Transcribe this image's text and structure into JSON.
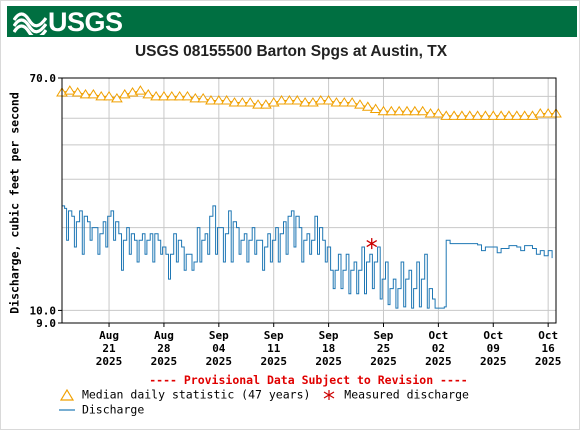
{
  "header": {
    "logo_text": "USGS",
    "banner_color": "#006f41"
  },
  "chart_data": {
    "type": "line",
    "title": "USGS 08155500 Barton Spgs at Austin, TX",
    "ylabel": "Discharge, cubic feet per second",
    "xlabel": "",
    "y_scale": "log",
    "ylim": [
      9.0,
      70.0
    ],
    "y_ticks": [
      {
        "value": 70.0,
        "label": "70.0"
      },
      {
        "value": 10.0,
        "label": "10.0"
      },
      {
        "value": 9.0,
        "label": "9.0"
      }
    ],
    "y_gridlines": [
      9,
      10,
      20,
      30,
      40,
      50,
      60,
      70
    ],
    "xlim": [
      "2025-08-15",
      "2025-10-17"
    ],
    "x_ticks": [
      {
        "date": "2025-08-21",
        "label": [
          "Aug",
          "21",
          "2025"
        ]
      },
      {
        "date": "2025-08-28",
        "label": [
          "Aug",
          "28",
          "2025"
        ]
      },
      {
        "date": "2025-09-04",
        "label": [
          "Sep",
          "04",
          "2025"
        ]
      },
      {
        "date": "2025-09-11",
        "label": [
          "Sep",
          "11",
          "2025"
        ]
      },
      {
        "date": "2025-09-18",
        "label": [
          "Sep",
          "18",
          "2025"
        ]
      },
      {
        "date": "2025-09-25",
        "label": [
          "Sep",
          "25",
          "2025"
        ]
      },
      {
        "date": "2025-10-02",
        "label": [
          "Oct",
          "02",
          "2025"
        ]
      },
      {
        "date": "2025-10-09",
        "label": [
          "Oct",
          "09",
          "2025"
        ]
      },
      {
        "date": "2025-10-16",
        "label": [
          "Oct",
          "16",
          "2025"
        ]
      }
    ],
    "grid": true,
    "series": [
      {
        "name": "Median daily statistic (47 years)",
        "color": "#f0a000",
        "marker": "triangle",
        "points": [
          [
            "2025-08-15",
            62
          ],
          [
            "2025-08-16",
            63
          ],
          [
            "2025-08-17",
            62
          ],
          [
            "2025-08-18",
            61
          ],
          [
            "2025-08-19",
            61
          ],
          [
            "2025-08-20",
            60
          ],
          [
            "2025-08-21",
            60
          ],
          [
            "2025-08-22",
            59
          ],
          [
            "2025-08-23",
            61
          ],
          [
            "2025-08-24",
            62
          ],
          [
            "2025-08-25",
            63
          ],
          [
            "2025-08-26",
            61
          ],
          [
            "2025-08-27",
            60
          ],
          [
            "2025-08-28",
            60
          ],
          [
            "2025-08-29",
            60
          ],
          [
            "2025-08-30",
            60
          ],
          [
            "2025-08-31",
            60
          ],
          [
            "2025-09-01",
            59
          ],
          [
            "2025-09-02",
            59
          ],
          [
            "2025-09-03",
            58
          ],
          [
            "2025-09-04",
            58
          ],
          [
            "2025-09-05",
            58
          ],
          [
            "2025-09-06",
            57
          ],
          [
            "2025-09-07",
            57
          ],
          [
            "2025-09-08",
            57
          ],
          [
            "2025-09-09",
            56
          ],
          [
            "2025-09-10",
            56
          ],
          [
            "2025-09-11",
            57
          ],
          [
            "2025-09-12",
            58
          ],
          [
            "2025-09-13",
            58
          ],
          [
            "2025-09-14",
            58
          ],
          [
            "2025-09-15",
            57
          ],
          [
            "2025-09-16",
            57
          ],
          [
            "2025-09-17",
            58
          ],
          [
            "2025-09-18",
            58
          ],
          [
            "2025-09-19",
            57
          ],
          [
            "2025-09-20",
            57
          ],
          [
            "2025-09-21",
            57
          ],
          [
            "2025-09-22",
            56
          ],
          [
            "2025-09-23",
            55
          ],
          [
            "2025-09-24",
            54
          ],
          [
            "2025-09-25",
            53
          ],
          [
            "2025-09-26",
            53
          ],
          [
            "2025-09-27",
            53
          ],
          [
            "2025-09-28",
            53
          ],
          [
            "2025-09-29",
            53
          ],
          [
            "2025-09-30",
            53
          ],
          [
            "2025-10-01",
            52
          ],
          [
            "2025-10-02",
            52
          ],
          [
            "2025-10-03",
            51
          ],
          [
            "2025-10-04",
            51
          ],
          [
            "2025-10-05",
            51
          ],
          [
            "2025-10-06",
            51
          ],
          [
            "2025-10-07",
            51
          ],
          [
            "2025-10-08",
            51
          ],
          [
            "2025-10-09",
            51
          ],
          [
            "2025-10-10",
            51
          ],
          [
            "2025-10-11",
            51
          ],
          [
            "2025-10-12",
            51
          ],
          [
            "2025-10-13",
            51
          ],
          [
            "2025-10-14",
            51
          ],
          [
            "2025-10-15",
            52
          ],
          [
            "2025-10-16",
            52
          ],
          [
            "2025-10-17",
            52
          ]
        ]
      },
      {
        "name": "Measured discharge",
        "color": "#cc0000",
        "marker": "asterisk",
        "points": [
          [
            "2025-09-23T12:00",
            17.5
          ]
        ]
      },
      {
        "name": "Discharge",
        "color": "#1f77b4",
        "marker": "line",
        "points": [
          [
            "2025-08-15T00:00",
            24
          ],
          [
            "2025-08-15T08:00",
            23.5
          ],
          [
            "2025-08-15T14:00",
            18
          ],
          [
            "2025-08-15T20:00",
            23
          ],
          [
            "2025-08-16T06:00",
            22
          ],
          [
            "2025-08-16T14:00",
            17
          ],
          [
            "2025-08-16T20:00",
            21
          ],
          [
            "2025-08-17T06:00",
            23
          ],
          [
            "2025-08-17T14:00",
            16
          ],
          [
            "2025-08-17T20:00",
            22
          ],
          [
            "2025-08-18T06:00",
            21
          ],
          [
            "2025-08-18T14:00",
            18
          ],
          [
            "2025-08-18T20:00",
            20
          ],
          [
            "2025-08-19T06:00",
            20
          ],
          [
            "2025-08-19T14:00",
            16
          ],
          [
            "2025-08-19T20:00",
            19
          ],
          [
            "2025-08-20T06:00",
            21
          ],
          [
            "2025-08-20T14:00",
            17
          ],
          [
            "2025-08-20T20:00",
            22
          ],
          [
            "2025-08-21T06:00",
            23
          ],
          [
            "2025-08-21T14:00",
            18
          ],
          [
            "2025-08-21T20:00",
            21
          ],
          [
            "2025-08-22T06:00",
            19
          ],
          [
            "2025-08-22T14:00",
            14
          ],
          [
            "2025-08-22T20:00",
            18
          ],
          [
            "2025-08-23T06:00",
            20
          ],
          [
            "2025-08-23T14:00",
            16
          ],
          [
            "2025-08-23T20:00",
            19
          ],
          [
            "2025-08-24T06:00",
            18
          ],
          [
            "2025-08-24T14:00",
            15
          ],
          [
            "2025-08-24T20:00",
            18
          ],
          [
            "2025-08-25T06:00",
            19
          ],
          [
            "2025-08-25T14:00",
            16
          ],
          [
            "2025-08-25T20:00",
            18
          ],
          [
            "2025-08-26T06:00",
            19
          ],
          [
            "2025-08-26T14:00",
            15
          ],
          [
            "2025-08-26T20:00",
            19
          ],
          [
            "2025-08-27T06:00",
            18
          ],
          [
            "2025-08-27T14:00",
            16
          ],
          [
            "2025-08-27T20:00",
            17
          ],
          [
            "2025-08-28T06:00",
            16
          ],
          [
            "2025-08-28T14:00",
            13
          ],
          [
            "2025-08-28T20:00",
            16
          ],
          [
            "2025-08-29T06:00",
            19
          ],
          [
            "2025-08-29T14:00",
            15
          ],
          [
            "2025-08-29T20:00",
            18
          ],
          [
            "2025-08-30T06:00",
            17
          ],
          [
            "2025-08-30T14:00",
            14
          ],
          [
            "2025-08-30T20:00",
            16
          ],
          [
            "2025-08-31T06:00",
            16
          ],
          [
            "2025-08-31T14:00",
            14
          ],
          [
            "2025-08-31T20:00",
            15
          ],
          [
            "2025-09-01T06:00",
            20
          ],
          [
            "2025-09-01T14:00",
            15
          ],
          [
            "2025-09-01T20:00",
            18
          ],
          [
            "2025-09-02T06:00",
            19
          ],
          [
            "2025-09-02T14:00",
            16
          ],
          [
            "2025-09-02T20:00",
            22
          ],
          [
            "2025-09-03T06:00",
            24
          ],
          [
            "2025-09-03T14:00",
            16
          ],
          [
            "2025-09-03T20:00",
            20
          ],
          [
            "2025-09-04T06:00",
            20
          ],
          [
            "2025-09-04T14:00",
            15
          ],
          [
            "2025-09-04T20:00",
            19
          ],
          [
            "2025-09-05T06:00",
            23
          ],
          [
            "2025-09-05T14:00",
            15
          ],
          [
            "2025-09-05T20:00",
            21
          ],
          [
            "2025-09-06T06:00",
            20
          ],
          [
            "2025-09-06T14:00",
            16
          ],
          [
            "2025-09-06T20:00",
            18
          ],
          [
            "2025-09-07T06:00",
            19
          ],
          [
            "2025-09-07T14:00",
            15
          ],
          [
            "2025-09-07T20:00",
            18
          ],
          [
            "2025-09-08T06:00",
            20
          ],
          [
            "2025-09-08T14:00",
            16
          ],
          [
            "2025-09-08T20:00",
            18
          ],
          [
            "2025-09-09T06:00",
            18
          ],
          [
            "2025-09-09T14:00",
            14
          ],
          [
            "2025-09-09T20:00",
            17
          ],
          [
            "2025-09-10T06:00",
            19
          ],
          [
            "2025-09-10T14:00",
            15
          ],
          [
            "2025-09-10T20:00",
            18
          ],
          [
            "2025-09-11T06:00",
            20
          ],
          [
            "2025-09-11T14:00",
            15
          ],
          [
            "2025-09-11T20:00",
            19
          ],
          [
            "2025-09-12T06:00",
            21
          ],
          [
            "2025-09-12T14:00",
            16
          ],
          [
            "2025-09-12T20:00",
            22
          ],
          [
            "2025-09-13T06:00",
            23
          ],
          [
            "2025-09-13T14:00",
            17
          ],
          [
            "2025-09-13T20:00",
            22
          ],
          [
            "2025-09-14T06:00",
            20
          ],
          [
            "2025-09-14T14:00",
            15
          ],
          [
            "2025-09-14T20:00",
            18
          ],
          [
            "2025-09-15T06:00",
            19
          ],
          [
            "2025-09-15T14:00",
            16
          ],
          [
            "2025-09-15T20:00",
            18
          ],
          [
            "2025-09-16T06:00",
            22
          ],
          [
            "2025-09-16T14:00",
            16
          ],
          [
            "2025-09-16T20:00",
            20
          ],
          [
            "2025-09-17T06:00",
            18
          ],
          [
            "2025-09-17T14:00",
            15
          ],
          [
            "2025-09-17T20:00",
            17
          ],
          [
            "2025-09-18T06:00",
            14
          ],
          [
            "2025-09-18T14:00",
            12
          ],
          [
            "2025-09-18T20:00",
            14
          ],
          [
            "2025-09-19T06:00",
            16
          ],
          [
            "2025-09-19T14:00",
            12
          ],
          [
            "2025-09-19T20:00",
            14
          ],
          [
            "2025-09-20T06:00",
            16
          ],
          [
            "2025-09-20T14:00",
            11.5
          ],
          [
            "2025-09-20T20:00",
            14
          ],
          [
            "2025-09-21T06:00",
            15
          ],
          [
            "2025-09-21T14:00",
            11.5
          ],
          [
            "2025-09-21T20:00",
            14
          ],
          [
            "2025-09-22T06:00",
            17
          ],
          [
            "2025-09-22T14:00",
            11.5
          ],
          [
            "2025-09-22T20:00",
            15
          ],
          [
            "2025-09-23T06:00",
            16
          ],
          [
            "2025-09-23T14:00",
            12
          ],
          [
            "2025-09-23T20:00",
            15
          ],
          [
            "2025-09-24T06:00",
            17
          ],
          [
            "2025-09-24T14:00",
            11
          ],
          [
            "2025-09-24T20:00",
            13
          ],
          [
            "2025-09-25T06:00",
            15
          ],
          [
            "2025-09-25T14:00",
            10.5
          ],
          [
            "2025-09-25T20:00",
            12
          ],
          [
            "2025-09-26T06:00",
            13
          ],
          [
            "2025-09-26T14:00",
            10.2
          ],
          [
            "2025-09-26T20:00",
            12
          ],
          [
            "2025-09-27T06:00",
            15
          ],
          [
            "2025-09-27T14:00",
            10.3
          ],
          [
            "2025-09-27T20:00",
            13
          ],
          [
            "2025-09-28T06:00",
            14
          ],
          [
            "2025-09-28T14:00",
            10.2
          ],
          [
            "2025-09-28T20:00",
            12
          ],
          [
            "2025-09-29T06:00",
            15
          ],
          [
            "2025-09-29T14:00",
            10.3
          ],
          [
            "2025-09-29T20:00",
            13
          ],
          [
            "2025-09-30T06:00",
            16
          ],
          [
            "2025-09-30T14:00",
            10.2
          ],
          [
            "2025-09-30T20:00",
            12
          ],
          [
            "2025-10-01T06:00",
            11
          ],
          [
            "2025-10-01T14:00",
            10.2
          ],
          [
            "2025-10-02T00:00",
            10.2
          ],
          [
            "2025-10-02T12:00",
            10.2
          ],
          [
            "2025-10-02T18:00",
            10.3
          ],
          [
            "2025-10-03T00:00",
            18
          ],
          [
            "2025-10-03T12:00",
            17.5
          ],
          [
            "2025-10-04T00:00",
            17.5
          ],
          [
            "2025-10-05T00:00",
            17.5
          ],
          [
            "2025-10-06T00:00",
            17.5
          ],
          [
            "2025-10-07T00:00",
            17.3
          ],
          [
            "2025-10-07T12:00",
            16.5
          ],
          [
            "2025-10-08T00:00",
            17
          ],
          [
            "2025-10-09T00:00",
            17
          ],
          [
            "2025-10-09T12:00",
            16.2
          ],
          [
            "2025-10-10T00:00",
            16.8
          ],
          [
            "2025-10-11T00:00",
            17.2
          ],
          [
            "2025-10-12T00:00",
            17
          ],
          [
            "2025-10-12T12:00",
            16.5
          ],
          [
            "2025-10-13T00:00",
            17.2
          ],
          [
            "2025-10-14T00:00",
            16.8
          ],
          [
            "2025-10-14T12:00",
            16
          ],
          [
            "2025-10-15T00:00",
            16.5
          ],
          [
            "2025-10-15T12:00",
            15.8
          ],
          [
            "2025-10-16T00:00",
            16.5
          ],
          [
            "2025-10-16T12:00",
            15.5
          ]
        ]
      }
    ],
    "provisional_note": "---- Provisional Data Subject to Revision ----"
  }
}
